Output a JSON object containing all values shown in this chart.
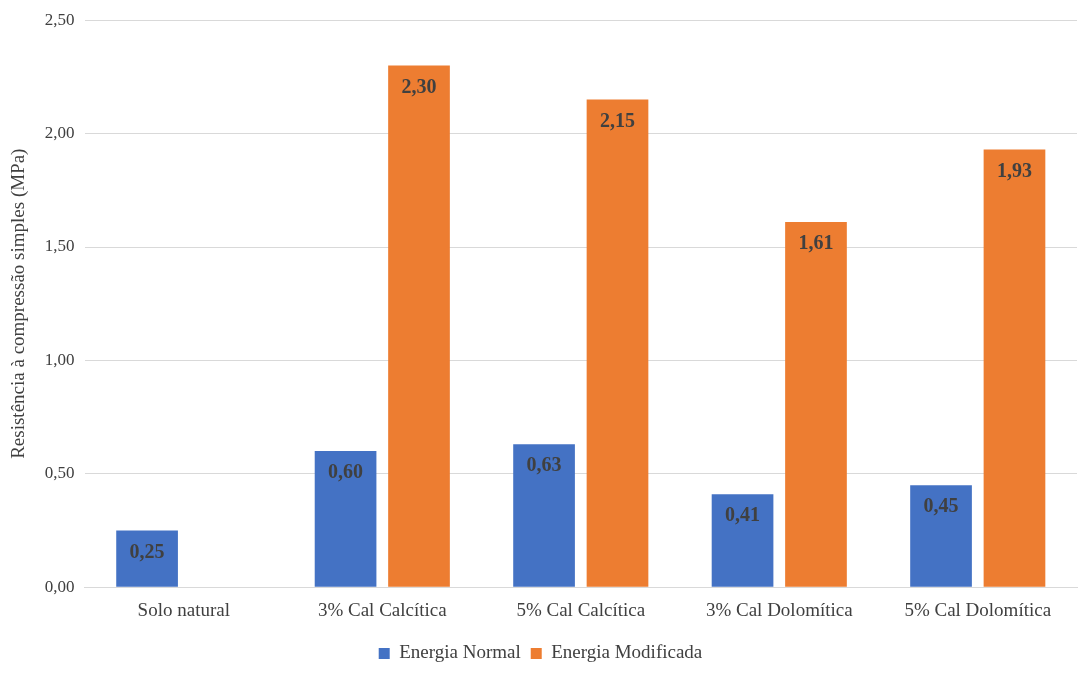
{
  "chart_data": {
    "type": "bar",
    "ylabel": "Resistência à compressão simples (MPa)",
    "categories": [
      "Solo natural",
      "3% Cal Calcítica",
      "5% Cal Calcítica",
      "3% Cal Dolomítica",
      "5% Cal Dolomítica"
    ],
    "series": [
      {
        "name": "Energia Normal",
        "color": "#4472c4",
        "values": [
          0.25,
          0.6,
          0.63,
          0.41,
          0.45
        ],
        "value_labels": [
          "0,25",
          "0,60",
          "0,63",
          "0,41",
          "0,45"
        ]
      },
      {
        "name": "Energia Modificada",
        "color": "#ed7d31",
        "values": [
          null,
          2.3,
          2.15,
          1.61,
          1.93
        ],
        "value_labels": [
          null,
          "2,30",
          "2,15",
          "1,61",
          "1,93"
        ]
      }
    ],
    "ylim": [
      0,
      2.5
    ],
    "yticks": [
      {
        "value": 0,
        "label": "0,00"
      },
      {
        "value": 0.5,
        "label": "0,50"
      },
      {
        "value": 1,
        "label": "1,00"
      },
      {
        "value": 1.5,
        "label": "1,50"
      },
      {
        "value": 2,
        "label": "2,00"
      },
      {
        "value": 2.5,
        "label": "2,50"
      }
    ],
    "grid": "y",
    "legend": "bottom"
  }
}
